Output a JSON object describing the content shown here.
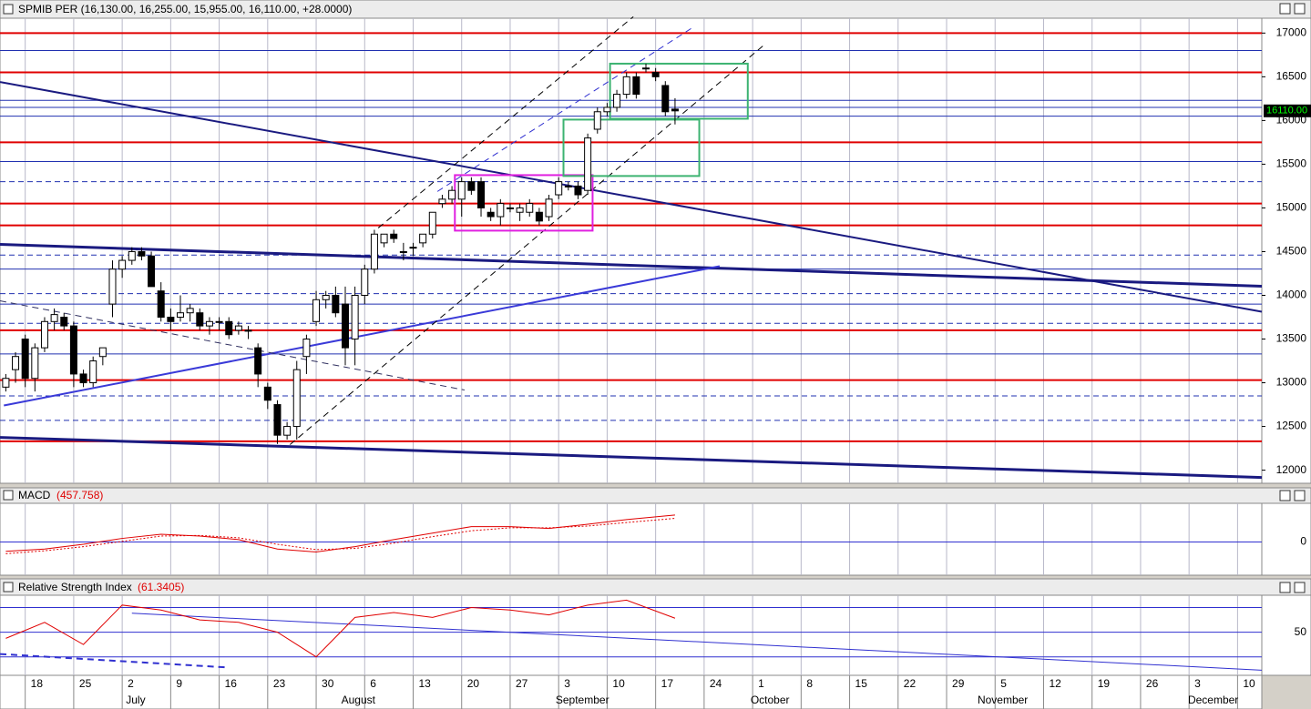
{
  "chart_data": [
    {
      "type": "candlestick",
      "title": "SPMIB PER (16,130.00, 16,255.00, 15,955.00, 16,110.00, +28.0000)",
      "last_label": "16110.00",
      "xlim": [
        -0.6,
        129.5
      ],
      "ylim": [
        11850,
        17170
      ],
      "yticks": [
        12000,
        12500,
        13000,
        13500,
        14000,
        14500,
        15000,
        15500,
        16000,
        16500,
        17000
      ],
      "candles": {
        "open": [
          12950,
          13150,
          13500,
          13050,
          13400,
          13700,
          13750,
          13650,
          13100,
          13000,
          13300,
          13900,
          14300,
          14400,
          14500,
          14450,
          14050,
          13750,
          13750,
          13800,
          13800,
          13650,
          13700,
          13700,
          13600,
          13600,
          13400,
          12950,
          12750,
          12400,
          12500,
          13300,
          13700,
          13950,
          14000,
          13900,
          13500,
          14000,
          14300,
          14600,
          14700,
          14500,
          14550,
          14600,
          14700,
          15050,
          15100,
          15100,
          15300,
          15300,
          14950,
          14900,
          15000,
          14950,
          14950,
          14950,
          14900,
          15150,
          15250,
          15250,
          15200,
          15900,
          16100,
          16150,
          16300,
          16500,
          16600,
          16550,
          16400,
          16130
        ],
        "high": [
          13100,
          13350,
          13550,
          13450,
          13750,
          13850,
          13800,
          13700,
          13150,
          13300,
          13400,
          14400,
          14450,
          14550,
          14550,
          14500,
          14150,
          13850,
          14000,
          13900,
          13850,
          13750,
          13750,
          13750,
          13700,
          13650,
          13450,
          13000,
          12800,
          12550,
          13250,
          13550,
          14050,
          14050,
          14100,
          14100,
          14100,
          14350,
          14750,
          14700,
          14750,
          14600,
          14600,
          14700,
          14950,
          15150,
          15250,
          15350,
          15350,
          15350,
          15000,
          15100,
          15050,
          15050,
          15100,
          15000,
          15150,
          15350,
          15300,
          15300,
          15850,
          16150,
          16200,
          16350,
          16550,
          16550,
          16650,
          16600,
          16450,
          16255
        ],
        "low": [
          12900,
          13000,
          12950,
          12900,
          13350,
          13600,
          13600,
          12950,
          12950,
          12950,
          13200,
          13750,
          14200,
          14350,
          14400,
          14100,
          13700,
          13600,
          13700,
          13700,
          13600,
          13550,
          13600,
          13500,
          13550,
          13500,
          12950,
          12700,
          12300,
          12350,
          12350,
          13100,
          13650,
          13850,
          13750,
          13200,
          13200,
          13900,
          14250,
          14550,
          14600,
          14400,
          14450,
          14550,
          14650,
          15000,
          15050,
          14900,
          15150,
          14900,
          14850,
          14800,
          14950,
          14850,
          14900,
          14800,
          14850,
          15100,
          15200,
          15100,
          15150,
          15850,
          16050,
          16100,
          16250,
          16250,
          16550,
          16450,
          16050,
          15955
        ],
        "close": [
          13050,
          13300,
          13050,
          13400,
          13700,
          13780,
          13650,
          13100,
          13000,
          13250,
          13400,
          14300,
          14400,
          14500,
          14450,
          14100,
          13750,
          13700,
          13800,
          13850,
          13650,
          13700,
          13700,
          13550,
          13650,
          13600,
          13100,
          12800,
          12400,
          12500,
          13150,
          13500,
          13950,
          14000,
          13800,
          13400,
          14000,
          14300,
          14700,
          14700,
          14650,
          14500,
          14550,
          14700,
          14950,
          15100,
          15200,
          15300,
          15200,
          15000,
          14900,
          15050,
          15000,
          15000,
          15050,
          14850,
          15100,
          15300,
          15250,
          15150,
          15800,
          16100,
          16150,
          16300,
          16500,
          16300,
          16600,
          16500,
          16100,
          16110
        ]
      },
      "hlines": [
        {
          "value": 17000,
          "color": "#e00000",
          "dash": false
        },
        {
          "value": 16550,
          "color": "#e00000",
          "dash": false
        },
        {
          "value": 15750,
          "color": "#e00000",
          "dash": false
        },
        {
          "value": 15050,
          "color": "#e00000",
          "dash": false
        },
        {
          "value": 14800,
          "color": "#e00000",
          "dash": false
        },
        {
          "value": 13600,
          "color": "#e00000",
          "dash": false
        },
        {
          "value": 13030,
          "color": "#e00000",
          "dash": false
        },
        {
          "value": 12330,
          "color": "#e00000",
          "dash": false
        },
        {
          "value": 16800,
          "color": "#2030b0",
          "dash": false
        },
        {
          "value": 16230,
          "color": "#2030b0",
          "dash": false
        },
        {
          "value": 16150,
          "color": "#2030b0",
          "dash": false
        },
        {
          "value": 16050,
          "color": "#2030b0",
          "dash": false
        },
        {
          "value": 15530,
          "color": "#2030b0",
          "dash": false
        },
        {
          "value": 14300,
          "color": "#2030b0",
          "dash": false
        },
        {
          "value": 13900,
          "color": "#2030b0",
          "dash": false
        },
        {
          "value": 13330,
          "color": "#2030b0",
          "dash": false
        },
        {
          "value": 15300,
          "color": "#2030b0",
          "dash": true
        },
        {
          "value": 14460,
          "color": "#2030b0",
          "dash": true
        },
        {
          "value": 14020,
          "color": "#2030b0",
          "dash": true
        },
        {
          "value": 13680,
          "color": "#2030b0",
          "dash": true
        },
        {
          "value": 12850,
          "color": "#2030b0",
          "dash": true
        },
        {
          "value": 12570,
          "color": "#2030b0",
          "dash": true
        }
      ],
      "trendlines": [
        {
          "x": [
            -0.6,
            129.5
          ],
          "y": [
            16440,
            13812
          ],
          "color": "#1a1a80",
          "width": 2,
          "dash": false
        },
        {
          "x": [
            -0.6,
            129.5
          ],
          "y": [
            14583,
            14104
          ],
          "color": "#1a1a80",
          "width": 3,
          "dash": false
        },
        {
          "x": [
            -0.6,
            129.5
          ],
          "y": [
            12375,
            11917
          ],
          "color": "#1a1a80",
          "width": 3,
          "dash": false
        },
        {
          "x": [
            -0.2,
            73.6
          ],
          "y": [
            12740,
            14333
          ],
          "color": "#3a3ad8",
          "width": 2,
          "dash": false
        },
        {
          "x": [
            -0.6,
            47.3
          ],
          "y": [
            13937,
            12917
          ],
          "color": "#303060",
          "width": 1,
          "dash": true
        },
        {
          "x": [
            29.3,
            78.3
          ],
          "y": [
            12292,
            16875
          ],
          "color": "#000000",
          "width": 1,
          "dash": true
        },
        {
          "x": [
            38.4,
            64.7
          ],
          "y": [
            14771,
            17187
          ],
          "color": "#000000",
          "width": 1,
          "dash": true
        },
        {
          "x": [
            44.5,
            70.8
          ],
          "y": [
            15188,
            17062
          ],
          "color": "#3030d0",
          "width": 1,
          "dash": true
        }
      ],
      "boxes": [
        {
          "x": [
            46.3,
            60.5
          ],
          "y": [
            14740,
            15375
          ],
          "color": "#e020e0"
        },
        {
          "x": [
            57.5,
            71.5
          ],
          "y": [
            15365,
            16010
          ],
          "color": "#3cb371"
        },
        {
          "x": [
            62.3,
            76.5
          ],
          "y": [
            16020,
            16650
          ],
          "color": "#3cb371"
        }
      ],
      "xticks": [
        {
          "value": 2,
          "label": "18"
        },
        {
          "value": 7,
          "label": "25"
        },
        {
          "value": 12,
          "label": "2"
        },
        {
          "value": 17,
          "label": "9"
        },
        {
          "value": 22,
          "label": "16"
        },
        {
          "value": 27,
          "label": "23"
        },
        {
          "value": 32,
          "label": "30"
        },
        {
          "value": 37,
          "label": "6"
        },
        {
          "value": 42,
          "label": "13"
        },
        {
          "value": 47,
          "label": "20"
        },
        {
          "value": 52,
          "label": "27"
        },
        {
          "value": 57,
          "label": "3"
        },
        {
          "value": 62,
          "label": "10"
        },
        {
          "value": 67,
          "label": "17"
        },
        {
          "value": 72,
          "label": "24"
        },
        {
          "value": 77,
          "label": "1"
        },
        {
          "value": 82,
          "label": "8"
        },
        {
          "value": 87,
          "label": "15"
        },
        {
          "value": 92,
          "label": "22"
        },
        {
          "value": 97,
          "label": "29"
        },
        {
          "value": 102,
          "label": "5"
        },
        {
          "value": 107,
          "label": "12"
        },
        {
          "value": 112,
          "label": "19"
        },
        {
          "value": 117,
          "label": "26"
        },
        {
          "value": 122,
          "label": "3"
        },
        {
          "value": 127,
          "label": "10"
        }
      ],
      "months": [
        {
          "value": 12.2,
          "label": "July"
        },
        {
          "value": 34.4,
          "label": "August"
        },
        {
          "value": 56.5,
          "label": "September"
        },
        {
          "value": 76.6,
          "label": "October"
        },
        {
          "value": 100,
          "label": "November"
        },
        {
          "value": 121.7,
          "label": "December"
        }
      ]
    },
    {
      "type": "line",
      "title": "MACD",
      "value_label": "(457.758)",
      "xlim": [
        -0.6,
        129.5
      ],
      "ylim": [
        -565,
        656
      ],
      "yticks": [
        0
      ],
      "x": [
        0,
        4,
        8,
        12,
        16,
        20,
        24,
        28,
        32,
        36,
        40,
        44,
        48,
        52,
        56,
        60,
        64,
        69
      ],
      "series": [
        {
          "color": "#e00000",
          "dash": false,
          "values": [
            -160,
            -120,
            -40,
            60,
            130,
            100,
            40,
            -120,
            -170,
            -80,
            40,
            150,
            260,
            260,
            230,
            300,
            380,
            457.758
          ]
        },
        {
          "color": "#e00000",
          "dash": true,
          "values": [
            -200,
            -150,
            -80,
            10,
            100,
            110,
            70,
            -40,
            -130,
            -110,
            -20,
            90,
            190,
            240,
            240,
            270,
            330,
            400
          ]
        }
      ]
    },
    {
      "type": "line",
      "title": "Relative Strength Index",
      "value_label": "(61.3405)",
      "xlim": [
        -0.6,
        129.5
      ],
      "ylim": [
        15,
        80
      ],
      "yticks": [
        50
      ],
      "levels": [
        70,
        30
      ],
      "x": [
        0,
        4,
        8,
        12,
        16,
        20,
        24,
        28,
        32,
        36,
        40,
        44,
        48,
        52,
        56,
        60,
        64,
        69
      ],
      "series": [
        {
          "color": "#e00000",
          "dash": false,
          "values": [
            45,
            58,
            40,
            72,
            68,
            60,
            58,
            50,
            30,
            62,
            66,
            62,
            70,
            68,
            64,
            72,
            76,
            61.3405
          ]
        }
      ],
      "trendlines": [
        {
          "x": [
            13,
            129.5
          ],
          "y": [
            65.4,
            19.2
          ],
          "color": "#3030d0",
          "width": 1,
          "dash": false
        },
        {
          "x": [
            -0.6,
            22.6
          ],
          "y": [
            32.3,
            21.5
          ],
          "color": "#3030d0",
          "width": 2,
          "dash": true
        }
      ]
    }
  ]
}
